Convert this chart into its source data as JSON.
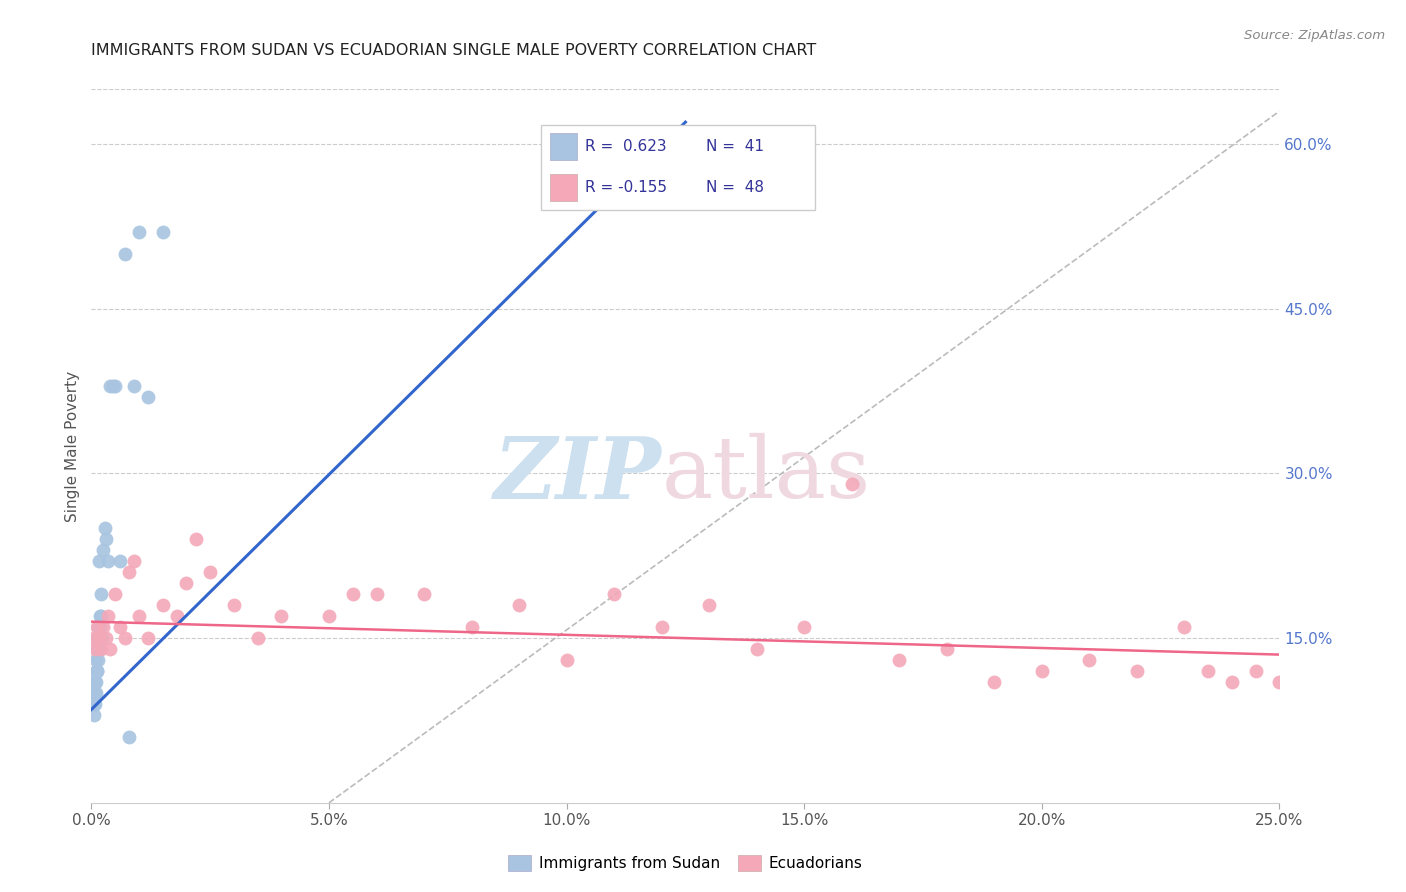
{
  "title": "IMMIGRANTS FROM SUDAN VS ECUADORIAN SINGLE MALE POVERTY CORRELATION CHART",
  "source": "Source: ZipAtlas.com",
  "ylabel": "Single Male Poverty",
  "xlim": [
    0,
    0.25
  ],
  "ylim": [
    0,
    0.65
  ],
  "xticks": [
    0.0,
    0.05,
    0.1,
    0.15,
    0.2,
    0.25
  ],
  "yticks_right": [
    0.15,
    0.3,
    0.45,
    0.6
  ],
  "blue_color": "#a8c4e0",
  "pink_color": "#f4a8b8",
  "blue_line_color": "#3366cc",
  "pink_line_color": "#ee6688",
  "gray_dash_color": "#bbbbbb",
  "background_color": "#ffffff",
  "grid_color": "#cccccc",
  "right_tick_color": "#5577cc",
  "sudan_x": [
    0.0005,
    0.0005,
    0.0006,
    0.0006,
    0.0007,
    0.0008,
    0.0008,
    0.0009,
    0.0009,
    0.001,
    0.001,
    0.0011,
    0.0011,
    0.0012,
    0.0012,
    0.0013,
    0.0013,
    0.0014,
    0.0015,
    0.0015,
    0.0016,
    0.0017,
    0.0018,
    0.0019,
    0.002,
    0.0021,
    0.0022,
    0.0025,
    0.0028,
    0.003,
    0.0035,
    0.004,
    0.0045,
    0.005,
    0.006,
    0.007,
    0.008,
    0.009,
    0.01,
    0.012,
    0.015
  ],
  "sudan_y": [
    0.1,
    0.09,
    0.08,
    0.11,
    0.1,
    0.09,
    0.11,
    0.1,
    0.12,
    0.11,
    0.13,
    0.12,
    0.14,
    0.12,
    0.15,
    0.13,
    0.16,
    0.14,
    0.15,
    0.22,
    0.16,
    0.14,
    0.17,
    0.16,
    0.17,
    0.19,
    0.15,
    0.23,
    0.25,
    0.24,
    0.22,
    0.38,
    0.38,
    0.38,
    0.22,
    0.5,
    0.06,
    0.38,
    0.52,
    0.37,
    0.52
  ],
  "ecuador_x": [
    0.0005,
    0.0008,
    0.0012,
    0.0015,
    0.002,
    0.0025,
    0.003,
    0.0035,
    0.004,
    0.005,
    0.006,
    0.007,
    0.008,
    0.009,
    0.01,
    0.012,
    0.015,
    0.018,
    0.02,
    0.022,
    0.025,
    0.03,
    0.035,
    0.04,
    0.05,
    0.055,
    0.06,
    0.07,
    0.08,
    0.09,
    0.1,
    0.11,
    0.12,
    0.13,
    0.14,
    0.15,
    0.16,
    0.17,
    0.18,
    0.19,
    0.2,
    0.21,
    0.22,
    0.23,
    0.235,
    0.24,
    0.245,
    0.25
  ],
  "ecuador_y": [
    0.15,
    0.14,
    0.16,
    0.15,
    0.14,
    0.16,
    0.15,
    0.17,
    0.14,
    0.19,
    0.16,
    0.15,
    0.21,
    0.22,
    0.17,
    0.15,
    0.18,
    0.17,
    0.2,
    0.24,
    0.21,
    0.18,
    0.15,
    0.17,
    0.17,
    0.19,
    0.19,
    0.19,
    0.16,
    0.18,
    0.13,
    0.19,
    0.16,
    0.18,
    0.14,
    0.16,
    0.29,
    0.13,
    0.14,
    0.11,
    0.12,
    0.13,
    0.12,
    0.16,
    0.12,
    0.11,
    0.12,
    0.11
  ],
  "blue_line_x": [
    0.0,
    0.125
  ],
  "blue_line_y": [
    0.085,
    0.62
  ],
  "pink_line_x": [
    0.0,
    0.25
  ],
  "pink_line_y": [
    0.165,
    0.135
  ],
  "diag_line_x": [
    0.05,
    0.25
  ],
  "diag_line_y": [
    0.0,
    0.63
  ]
}
